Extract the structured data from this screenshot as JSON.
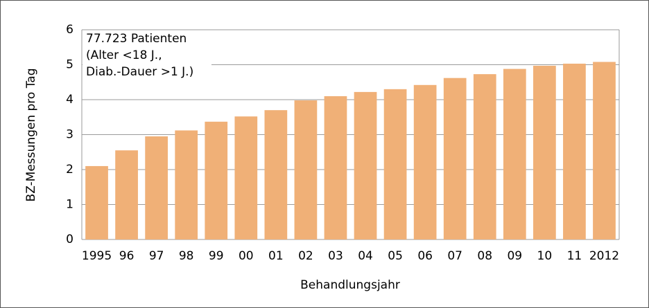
{
  "chart_data": {
    "type": "bar",
    "y_label": "BZ-Messungen pro Tag",
    "x_label": "Behandlungsjahr",
    "annotation": [
      "77.723 Patienten",
      "(Alter <18 J.,",
      "Diab.-Dauer >1 J.)"
    ],
    "categories": [
      "1995",
      "96",
      "97",
      "98",
      "99",
      "00",
      "01",
      "02",
      "03",
      "04",
      "05",
      "06",
      "07",
      "08",
      "09",
      "10",
      "11",
      "2012"
    ],
    "values": [
      2.1,
      2.55,
      2.95,
      3.12,
      3.37,
      3.52,
      3.7,
      3.98,
      4.1,
      4.22,
      4.3,
      4.42,
      4.62,
      4.73,
      4.88,
      4.97,
      5.03,
      5.08
    ],
    "color": "#f0b077",
    "ylim": [
      0,
      6
    ],
    "yticks": [
      0,
      1,
      2,
      3,
      4,
      5,
      6
    ],
    "grid": true
  }
}
